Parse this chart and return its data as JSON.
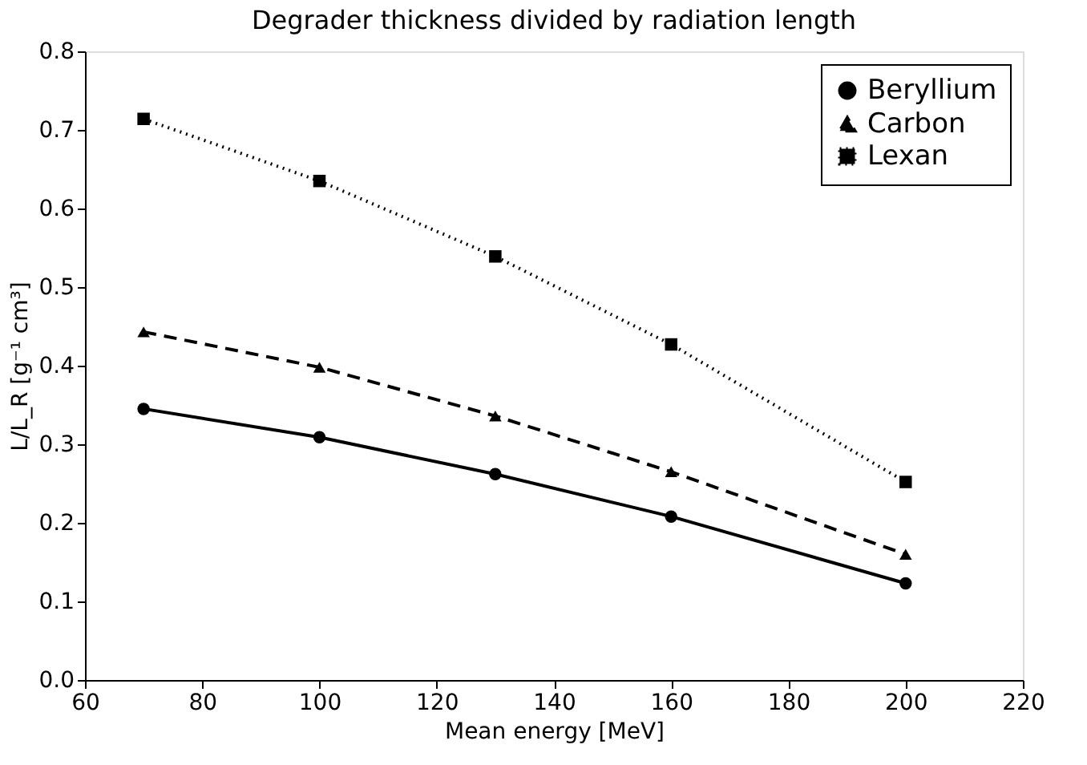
{
  "chart_data": {
    "type": "line",
    "title": "Degrader thickness divided by radiation length",
    "xlabel": "Mean energy [MeV]",
    "ylabel": "L/L_R [g⁻¹ cm³]",
    "x": [
      70,
      100,
      130,
      160,
      200
    ],
    "series": [
      {
        "name": "Beryllium",
        "color": "#000000",
        "values": [
          0.345,
          0.309,
          0.262,
          0.208,
          0.123
        ],
        "line_style": "solid",
        "marker": "circle"
      },
      {
        "name": "Carbon",
        "color": "#000000",
        "values": [
          0.443,
          0.398,
          0.336,
          0.265,
          0.16
        ],
        "line_style": "dashed",
        "marker": "triangle"
      },
      {
        "name": "Lexan",
        "color": "#000000",
        "values": [
          0.714,
          0.635,
          0.539,
          0.427,
          0.252
        ],
        "line_style": "dotted",
        "marker": "square"
      }
    ],
    "xlim": [
      60,
      220
    ],
    "xticks": [
      60,
      80,
      100,
      120,
      140,
      160,
      180,
      200,
      220
    ],
    "ylim": [
      0,
      0.8
    ],
    "yticks": [
      {
        "value": 0,
        "label": "0.0"
      },
      0.1,
      0.2,
      0.3,
      0.4,
      0.5,
      0.6,
      0.7,
      0.8
    ],
    "grid": false,
    "legend": "top right"
  }
}
